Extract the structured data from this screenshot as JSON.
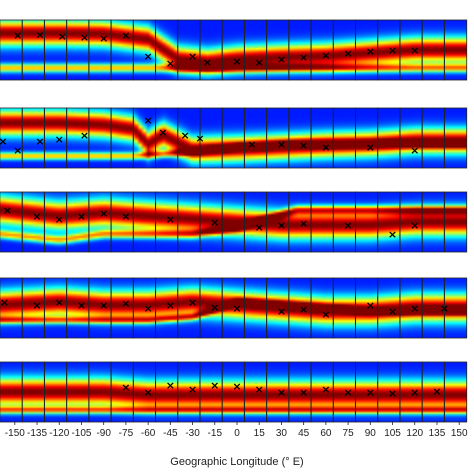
{
  "chart_data": {
    "type": "heatmap",
    "title": "",
    "xlabel": "Geographic Longitude (° E)",
    "ylabel": "",
    "x_ticks": [
      -150,
      -135,
      -120,
      -105,
      -90,
      -75,
      -60,
      -45,
      -30,
      -15,
      0,
      15,
      30,
      45,
      60,
      75,
      90,
      105,
      120,
      135,
      150
    ],
    "xlim": [
      -160,
      160
    ],
    "colormap": "jet",
    "marker": "×",
    "panels": [
      {
        "bands": [
          {
            "x": [
              -160,
              -120,
              -90,
              -60,
              -40,
              -20,
              0,
              30,
              60,
              90,
              120,
              160
            ],
            "y": [
              0.78,
              0.78,
              0.77,
              0.68,
              0.35,
              0.3,
              0.35,
              0.38,
              0.4,
              0.45,
              0.5,
              0.5
            ],
            "width": 0.2
          },
          {
            "x": [
              -160,
              -120,
              -90,
              -60,
              -30,
              0,
              30,
              60,
              90,
              120,
              160
            ],
            "y": [
              0.2,
              0.2,
              0.2,
              0.2,
              0.2,
              0.2,
              0.2,
              0.2,
              0.2,
              0.2,
              0.2
            ],
            "width": 0.07
          }
        ],
        "markers": [
          [
            -148,
            0.75
          ],
          [
            -133,
            0.76
          ],
          [
            -118,
            0.73
          ],
          [
            -103,
            0.72
          ],
          [
            -90,
            0.7
          ],
          [
            -75,
            0.75
          ],
          [
            -60,
            0.4
          ],
          [
            -45,
            0.28
          ],
          [
            -30,
            0.4
          ],
          [
            -20,
            0.3
          ],
          [
            0,
            0.32
          ],
          [
            15,
            0.3
          ],
          [
            30,
            0.35
          ],
          [
            45,
            0.38
          ],
          [
            60,
            0.42
          ],
          [
            75,
            0.45
          ],
          [
            90,
            0.48
          ],
          [
            105,
            0.5
          ],
          [
            120,
            0.5
          ]
        ]
      },
      {
        "bands": [
          {
            "x": [
              -160,
              -120,
              -90,
              -70,
              -60,
              -50,
              -30,
              0,
              30,
              60,
              90,
              120,
              160
            ],
            "y": [
              0.75,
              0.75,
              0.72,
              0.65,
              0.4,
              0.55,
              0.3,
              0.32,
              0.35,
              0.38,
              0.4,
              0.45,
              0.45
            ],
            "width": 0.2
          },
          {
            "x": [
              -160,
              -120,
              -90,
              -70,
              -40,
              0,
              40,
              80,
              120,
              160
            ],
            "y": [
              0.2,
              0.2,
              0.2,
              0.2,
              0.25,
              0.35,
              0.4,
              0.4,
              0.4,
              0.4
            ],
            "width": 0.06
          }
        ],
        "markers": [
          [
            -158,
            0.45
          ],
          [
            -148,
            0.3
          ],
          [
            -133,
            0.45
          ],
          [
            -120,
            0.48
          ],
          [
            -103,
            0.55
          ],
          [
            -60,
            0.8
          ],
          [
            -50,
            0.6
          ],
          [
            -35,
            0.55
          ],
          [
            -25,
            0.5
          ],
          [
            10,
            0.4
          ],
          [
            30,
            0.4
          ],
          [
            45,
            0.38
          ],
          [
            60,
            0.35
          ],
          [
            90,
            0.35
          ],
          [
            120,
            0.3
          ]
        ]
      },
      {
        "bands": [
          {
            "x": [
              -160,
              -120,
              -90,
              -60,
              -30,
              0,
              30,
              60,
              90,
              120,
              160
            ],
            "y": [
              0.7,
              0.6,
              0.65,
              0.6,
              0.55,
              0.5,
              0.45,
              0.45,
              0.45,
              0.5,
              0.5
            ],
            "width": 0.22
          },
          {
            "x": [
              -160,
              -120,
              -90,
              -60,
              -30,
              0,
              40,
              80,
              120,
              160
            ],
            "y": [
              0.3,
              0.2,
              0.3,
              0.3,
              0.3,
              0.4,
              0.7,
              0.7,
              0.7,
              0.7
            ],
            "width": 0.07
          }
        ],
        "markers": [
          [
            -155,
            0.7
          ],
          [
            -135,
            0.6
          ],
          [
            -120,
            0.55
          ],
          [
            -105,
            0.6
          ],
          [
            -90,
            0.65
          ],
          [
            -75,
            0.6
          ],
          [
            -45,
            0.55
          ],
          [
            -15,
            0.5
          ],
          [
            15,
            0.42
          ],
          [
            30,
            0.45
          ],
          [
            45,
            0.48
          ],
          [
            75,
            0.45
          ],
          [
            105,
            0.3
          ],
          [
            120,
            0.45
          ]
        ]
      },
      {
        "bands": [
          {
            "x": [
              -160,
              -120,
              -90,
              -60,
              -30,
              0,
              30,
              60,
              90,
              120,
              160
            ],
            "y": [
              0.55,
              0.6,
              0.55,
              0.55,
              0.6,
              0.55,
              0.5,
              0.45,
              0.45,
              0.5,
              0.5
            ],
            "width": 0.22
          },
          {
            "x": [
              -160,
              -120,
              -90,
              -60,
              -30,
              0,
              30,
              60,
              90,
              120,
              160
            ],
            "y": [
              0.3,
              0.3,
              0.3,
              0.3,
              0.35,
              0.6,
              0.55,
              0.5,
              0.45,
              0.45,
              0.45
            ],
            "width": 0.06
          }
        ],
        "markers": [
          [
            -157,
            0.6
          ],
          [
            -135,
            0.55
          ],
          [
            -120,
            0.6
          ],
          [
            -105,
            0.55
          ],
          [
            -90,
            0.55
          ],
          [
            -75,
            0.58
          ],
          [
            -60,
            0.5
          ],
          [
            -45,
            0.55
          ],
          [
            -30,
            0.6
          ],
          [
            -15,
            0.52
          ],
          [
            0,
            0.5
          ],
          [
            30,
            0.45
          ],
          [
            45,
            0.48
          ],
          [
            60,
            0.4
          ],
          [
            90,
            0.55
          ],
          [
            105,
            0.45
          ],
          [
            120,
            0.5
          ],
          [
            140,
            0.5
          ]
        ]
      },
      {
        "bands": [
          {
            "x": [
              -160,
              -120,
              -90,
              -60,
              -30,
              0,
              30,
              60,
              90,
              120,
              160
            ],
            "y": [
              0.5,
              0.5,
              0.5,
              0.45,
              0.45,
              0.45,
              0.45,
              0.45,
              0.45,
              0.45,
              0.45
            ],
            "width": 0.22
          },
          {
            "x": [
              -160,
              -120,
              -90,
              -60,
              -30,
              0,
              30,
              60,
              90,
              120,
              160
            ],
            "y": [
              0.2,
              0.2,
              0.2,
              0.2,
              0.2,
              0.2,
              0.2,
              0.2,
              0.2,
              0.2,
              0.2
            ],
            "width": 0.06
          }
        ],
        "markers": [
          [
            -75,
            0.58
          ],
          [
            -60,
            0.5
          ],
          [
            -45,
            0.62
          ],
          [
            -30,
            0.55
          ],
          [
            -15,
            0.62
          ],
          [
            0,
            0.6
          ],
          [
            15,
            0.55
          ],
          [
            30,
            0.5
          ],
          [
            45,
            0.5
          ],
          [
            60,
            0.55
          ],
          [
            75,
            0.5
          ],
          [
            90,
            0.5
          ],
          [
            105,
            0.48
          ],
          [
            120,
            0.5
          ],
          [
            135,
            0.52
          ]
        ]
      }
    ]
  }
}
